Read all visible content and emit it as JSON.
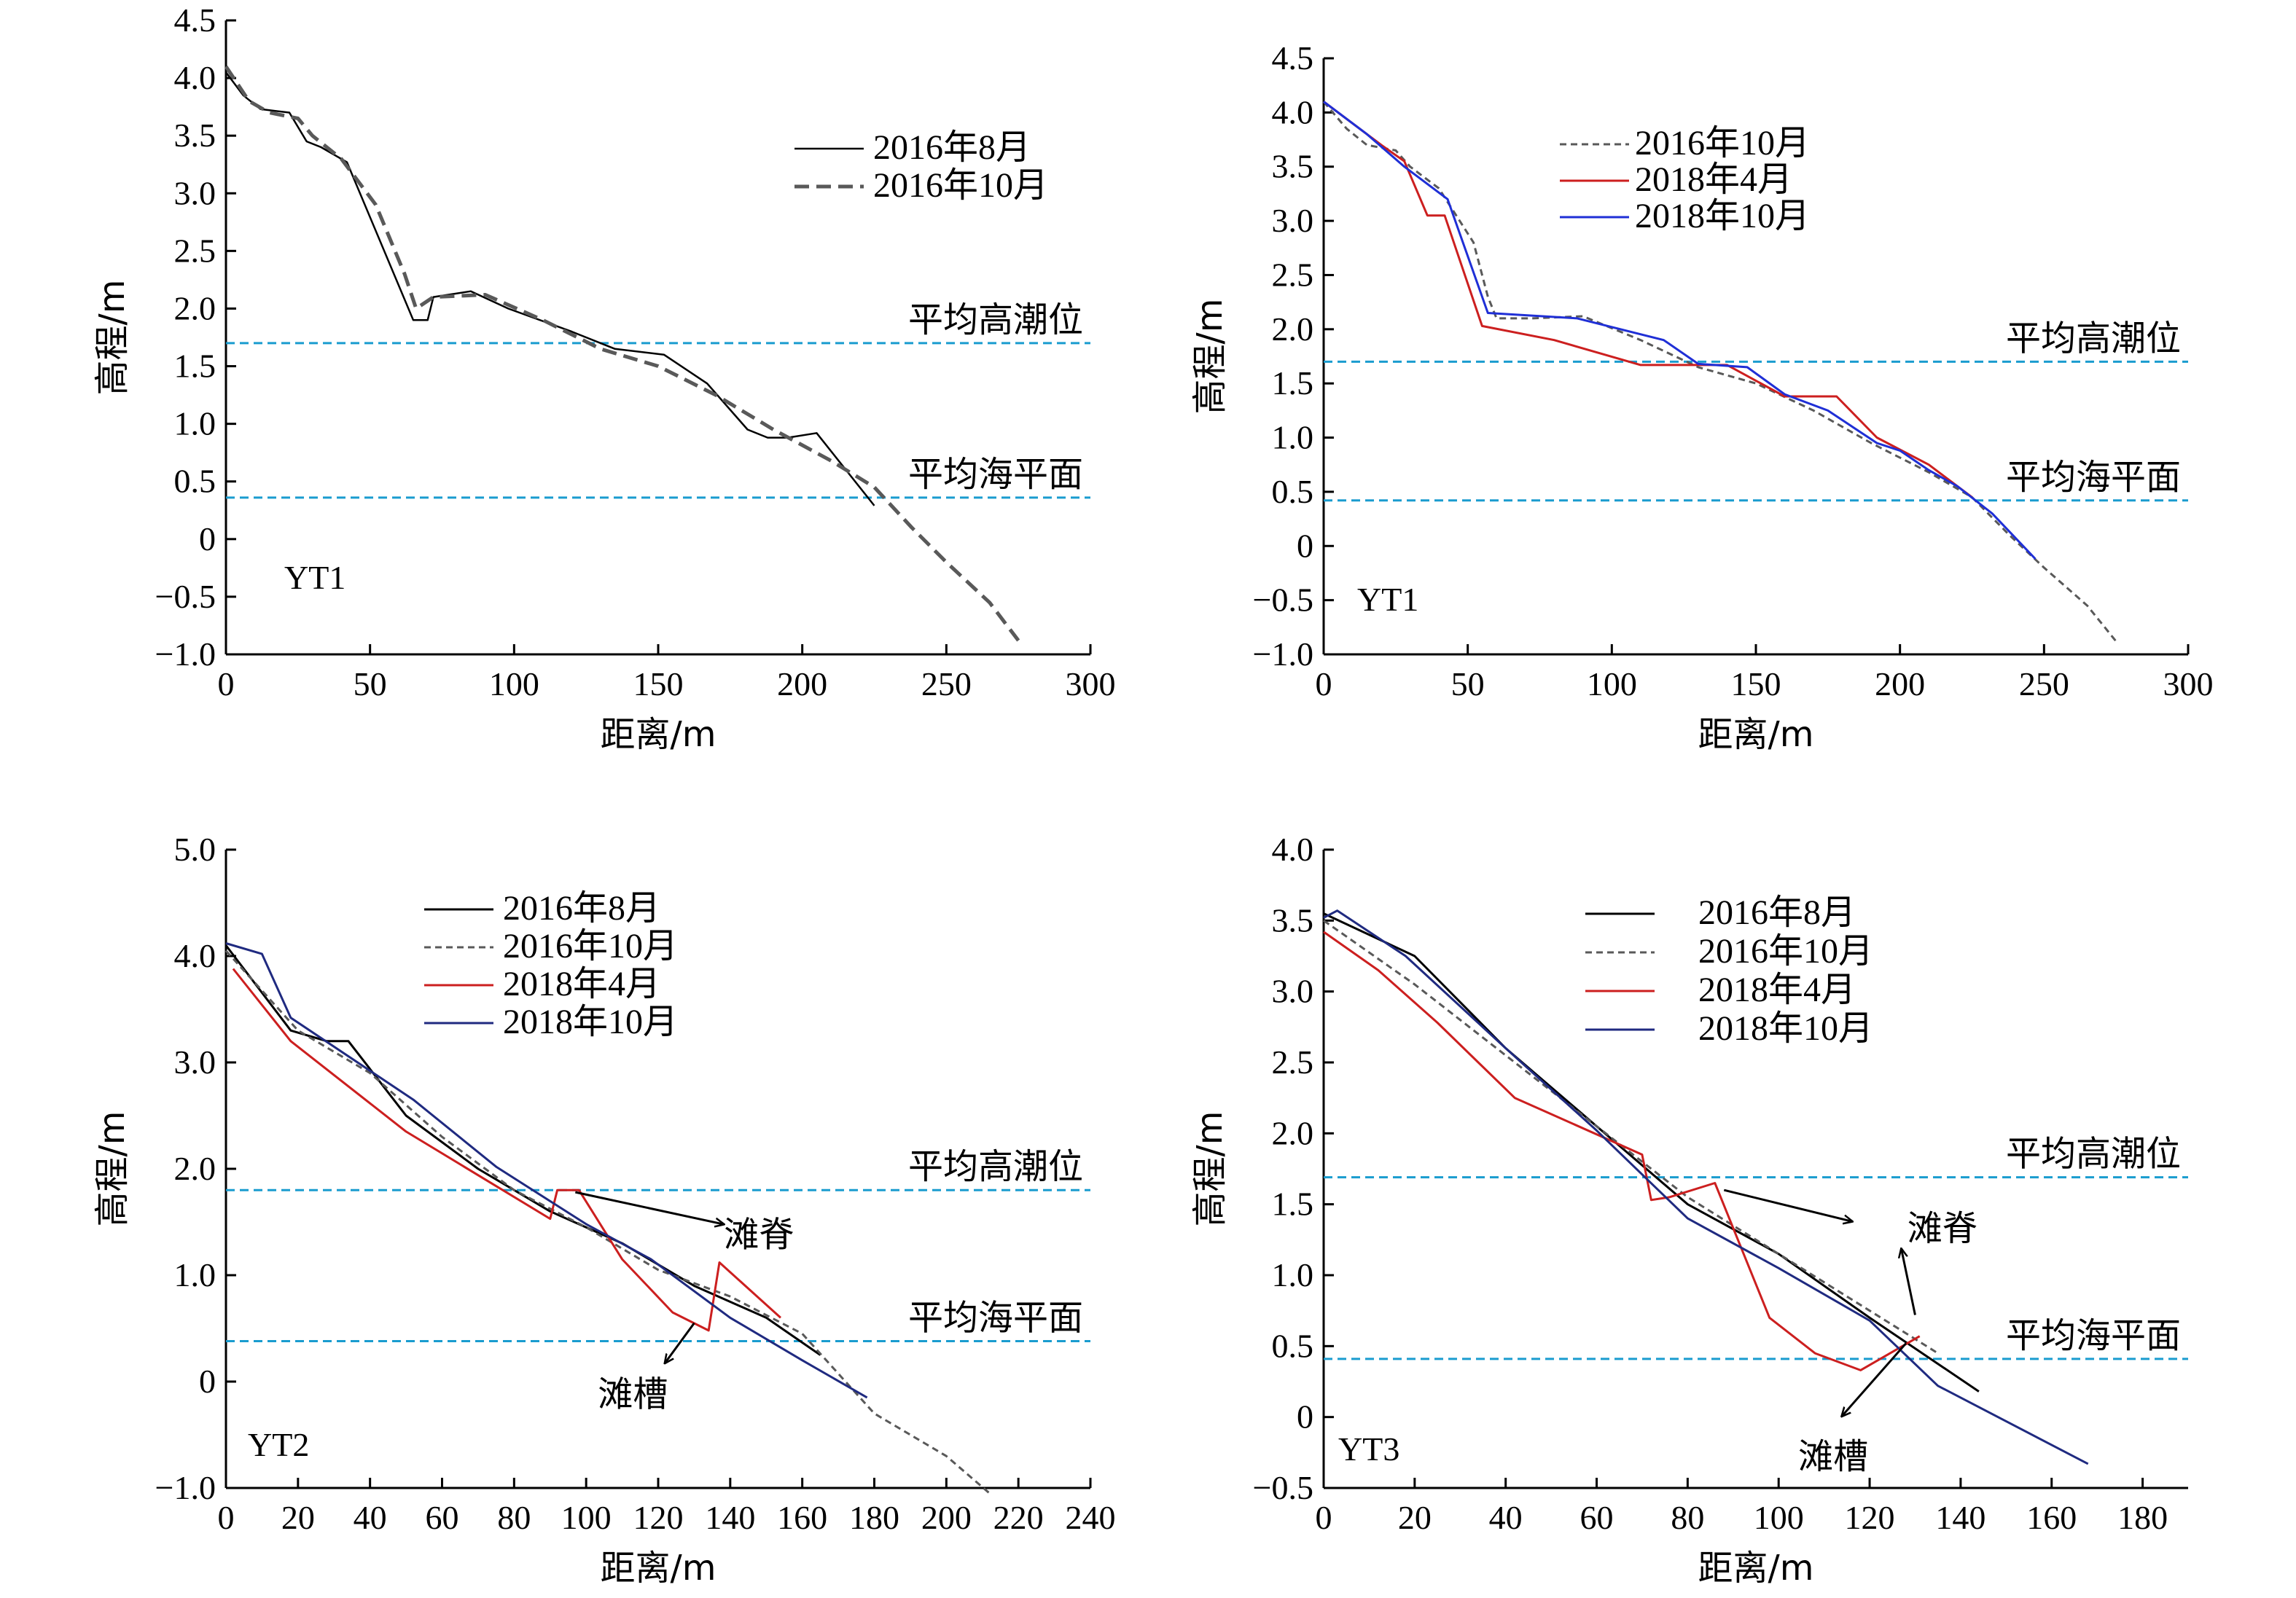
{
  "reference_lines": {
    "high_tide_label": "平均高潮位",
    "mean_sea_label": "平均海平面",
    "color": "#1a9ccf"
  },
  "chart_data": [
    {
      "type": "line",
      "panel_label": "YT1",
      "xlabel": "距离/m",
      "ylabel": "高程/m",
      "xlim": [
        0,
        300
      ],
      "ylim": [
        -1.0,
        4.5
      ],
      "xticks": [
        0,
        50,
        100,
        150,
        200,
        250,
        300
      ],
      "yticks": [
        -1.0,
        -0.5,
        0,
        0.5,
        1.0,
        1.5,
        2.0,
        2.5,
        3.0,
        3.5,
        4.0,
        4.5
      ],
      "ytick_labels": [
        "−1.0",
        "−0.5",
        "0",
        "0.5",
        "1.0",
        "1.5",
        "2.0",
        "2.5",
        "3.0",
        "3.5",
        "4.0",
        "4.5"
      ],
      "reference_lines": [
        {
          "key": "high_tide",
          "y": 1.7
        },
        {
          "key": "mean_sea",
          "y": 0.36
        }
      ],
      "legend_position": "top-right",
      "series": [
        {
          "name": "2016年8月",
          "color": "#000000",
          "style": "solid",
          "width": 2.5,
          "x": [
            0,
            6,
            12,
            22,
            28,
            33,
            42,
            65,
            70,
            72,
            85,
            98,
            120,
            135,
            152,
            167,
            181,
            188,
            195,
            205,
            225
          ],
          "y": [
            4.05,
            3.85,
            3.73,
            3.7,
            3.45,
            3.4,
            3.27,
            1.9,
            1.9,
            2.1,
            2.15,
            2.0,
            1.8,
            1.65,
            1.6,
            1.35,
            0.95,
            0.88,
            0.88,
            0.92,
            0.29
          ]
        },
        {
          "name": "2016年10月",
          "color": "#595959",
          "style": "dash",
          "width": 5,
          "x": [
            0,
            8,
            15,
            25,
            30,
            40,
            52,
            62,
            66,
            72,
            90,
            110,
            130,
            150,
            170,
            190,
            210,
            225,
            238,
            250,
            265,
            275
          ],
          "y": [
            4.1,
            3.8,
            3.7,
            3.65,
            3.5,
            3.3,
            2.9,
            2.3,
            2.0,
            2.1,
            2.12,
            1.9,
            1.65,
            1.5,
            1.25,
            0.95,
            0.68,
            0.45,
            0.1,
            -0.2,
            -0.55,
            -0.88
          ]
        }
      ]
    },
    {
      "type": "line",
      "panel_label": "YT1",
      "xlabel": "距离/m",
      "ylabel": "高程/m",
      "xlim": [
        0,
        300
      ],
      "ylim": [
        -1.0,
        4.5
      ],
      "xticks": [
        0,
        50,
        100,
        150,
        200,
        250,
        300
      ],
      "yticks": [
        -1.0,
        -0.5,
        0,
        0.5,
        1.0,
        1.5,
        2.0,
        2.5,
        3.0,
        3.5,
        4.0,
        4.5
      ],
      "ytick_labels": [
        "−1.0",
        "−0.5",
        "0",
        "0.5",
        "1.0",
        "1.5",
        "2.0",
        "2.5",
        "3.0",
        "3.5",
        "4.0",
        "4.5"
      ],
      "reference_lines": [
        {
          "key": "high_tide",
          "y": 1.7
        },
        {
          "key": "mean_sea",
          "y": 0.42
        }
      ],
      "legend_position": "top-center",
      "series": [
        {
          "name": "2016年10月",
          "color": "#595959",
          "style": "dash",
          "width": 3,
          "x": [
            0,
            8,
            15,
            25,
            30,
            40,
            52,
            57,
            60,
            72,
            90,
            110,
            130,
            150,
            170,
            190,
            210,
            225,
            238,
            250,
            265,
            275
          ],
          "y": [
            4.1,
            3.85,
            3.7,
            3.65,
            3.5,
            3.3,
            2.8,
            2.3,
            2.1,
            2.1,
            2.12,
            1.9,
            1.65,
            1.5,
            1.25,
            0.95,
            0.68,
            0.45,
            0.1,
            -0.2,
            -0.55,
            -0.88
          ]
        },
        {
          "name": "2018年4月",
          "color": "#cc1f1f",
          "style": "solid",
          "width": 3,
          "x": [
            0,
            20,
            28,
            36,
            42,
            55,
            80,
            110,
            140,
            160,
            178,
            192,
            210,
            225
          ],
          "y": [
            4.1,
            3.7,
            3.55,
            3.05,
            3.05,
            2.03,
            1.9,
            1.67,
            1.67,
            1.38,
            1.38,
            1.0,
            0.75,
            0.45
          ]
        },
        {
          "name": "2018年10月",
          "color": "#1f2fd6",
          "style": "solid",
          "width": 3,
          "x": [
            0,
            15,
            28,
            43,
            57,
            88,
            118,
            130,
            147,
            160,
            175,
            192,
            200,
            210,
            220,
            232,
            247
          ],
          "y": [
            4.1,
            3.8,
            3.5,
            3.2,
            2.15,
            2.1,
            1.9,
            1.68,
            1.65,
            1.4,
            1.25,
            0.95,
            0.88,
            0.7,
            0.55,
            0.3,
            -0.12
          ]
        }
      ]
    },
    {
      "type": "line",
      "panel_label": "YT2",
      "xlabel": "距离/m",
      "ylabel": "高程/m",
      "xlim": [
        0,
        240
      ],
      "ylim": [
        -1.0,
        5.0
      ],
      "xticks": [
        0,
        20,
        40,
        60,
        80,
        100,
        120,
        140,
        160,
        180,
        200,
        220,
        240
      ],
      "yticks": [
        -1.0,
        0,
        1.0,
        2.0,
        3.0,
        4.0,
        5.0
      ],
      "ytick_labels": [
        "−1.0",
        "0",
        "1.0",
        "2.0",
        "3.0",
        "4.0",
        "5.0"
      ],
      "reference_lines": [
        {
          "key": "high_tide",
          "y": 1.8
        },
        {
          "key": "mean_sea",
          "y": 0.38
        }
      ],
      "legend_position": "top-center",
      "series": [
        {
          "name": "2016年8月",
          "color": "#000000",
          "style": "solid",
          "width": 3,
          "x": [
            0,
            18,
            28,
            34,
            50,
            70,
            90,
            110,
            130,
            150,
            165
          ],
          "y": [
            4.1,
            3.3,
            3.2,
            3.2,
            2.5,
            2.0,
            1.6,
            1.3,
            0.9,
            0.6,
            0.25
          ]
        },
        {
          "name": "2016年10月",
          "color": "#595959",
          "style": "dash",
          "width": 3,
          "x": [
            0,
            20,
            40,
            60,
            80,
            100,
            120,
            140,
            160,
            180,
            200,
            212
          ],
          "y": [
            4.05,
            3.3,
            2.9,
            2.3,
            1.8,
            1.45,
            1.05,
            0.8,
            0.45,
            -0.3,
            -0.7,
            -1.05
          ]
        },
        {
          "name": "2018年4月",
          "color": "#cc1f1f",
          "style": "solid",
          "width": 3,
          "x": [
            2,
            18,
            50,
            90,
            92,
            98,
            110,
            124,
            134,
            137,
            154
          ],
          "y": [
            3.88,
            3.2,
            2.35,
            1.53,
            1.8,
            1.8,
            1.15,
            0.65,
            0.48,
            1.12,
            0.6
          ]
        },
        {
          "name": "2018年10月",
          "color": "#1f2a80",
          "style": "solid",
          "width": 3,
          "x": [
            0,
            10,
            18,
            52,
            75,
            100,
            118,
            140,
            160,
            178
          ],
          "y": [
            4.12,
            4.02,
            3.42,
            2.65,
            2.02,
            1.48,
            1.15,
            0.6,
            0.2,
            -0.15
          ]
        }
      ],
      "annotations": [
        {
          "text": "滩脊",
          "x": 148,
          "y": 1.38,
          "arrow_from": [
            97,
            1.78
          ],
          "arrow_to": [
            138,
            1.48
          ]
        },
        {
          "text": "滩槽",
          "x": 113,
          "y": -0.12,
          "arrow_from": [
            130,
            0.55
          ],
          "arrow_to": [
            122,
            0.18
          ]
        }
      ]
    },
    {
      "type": "line",
      "panel_label": "YT3",
      "xlabel": "距离/m",
      "ylabel": "高程/m",
      "xlim": [
        0,
        190
      ],
      "ylim": [
        -0.5,
        4.0
      ],
      "xticks": [
        0,
        20,
        40,
        60,
        80,
        100,
        120,
        140,
        160,
        180
      ],
      "yticks": [
        -0.5,
        0,
        0.5,
        1.0,
        1.5,
        2.0,
        2.5,
        3.0,
        3.5,
        4.0
      ],
      "ytick_labels": [
        "−0.5",
        "0",
        "0.5",
        "1.0",
        "1.5",
        "2.0",
        "2.5",
        "3.0",
        "3.5",
        "4.0"
      ],
      "reference_lines": [
        {
          "key": "high_tide",
          "y": 1.69
        },
        {
          "key": "mean_sea",
          "y": 0.41
        }
      ],
      "legend_position": "top-center",
      "series": [
        {
          "name": "2016年8月",
          "color": "#000000",
          "style": "solid",
          "width": 3,
          "x": [
            0,
            20,
            40,
            60,
            80,
            100,
            120,
            144
          ],
          "y": [
            3.55,
            3.25,
            2.6,
            2.05,
            1.5,
            1.15,
            0.7,
            0.18
          ]
        },
        {
          "name": "2016年10月",
          "color": "#595959",
          "style": "dash",
          "width": 3,
          "x": [
            0,
            20,
            40,
            60,
            80,
            100,
            120,
            135
          ],
          "y": [
            3.5,
            3.05,
            2.55,
            2.05,
            1.55,
            1.15,
            0.75,
            0.45
          ]
        },
        {
          "name": "2018年4月",
          "color": "#cc1f1f",
          "style": "solid",
          "width": 3,
          "x": [
            0,
            12,
            25,
            42,
            70,
            72,
            76,
            86,
            98,
            108,
            118,
            131
          ],
          "y": [
            3.42,
            3.15,
            2.78,
            2.25,
            1.85,
            1.53,
            1.55,
            1.65,
            0.7,
            0.45,
            0.33,
            0.57
          ]
        },
        {
          "name": "2018年10月",
          "color": "#1f2a80",
          "style": "solid",
          "width": 3,
          "x": [
            0,
            3,
            18,
            40,
            60,
            80,
            100,
            120,
            135,
            168
          ],
          "y": [
            3.52,
            3.57,
            3.25,
            2.6,
            2.02,
            1.4,
            1.05,
            0.68,
            0.22,
            -0.33
          ]
        }
      ],
      "annotations": [
        {
          "text": "滩脊",
          "x": 136,
          "y": 1.33,
          "arrow_from": [
            88,
            1.6
          ],
          "arrow_to": [
            116,
            1.38
          ]
        },
        {
          "text": "滩脊",
          "x": null,
          "y": null,
          "arrow_from": [
            130,
            0.72
          ],
          "arrow_to": [
            127,
            1.18
          ]
        },
        {
          "text": "滩槽",
          "x": 112,
          "y": -0.28,
          "arrow_from": [
            128,
            0.52
          ],
          "arrow_to": [
            114,
            0.01
          ]
        }
      ]
    }
  ]
}
